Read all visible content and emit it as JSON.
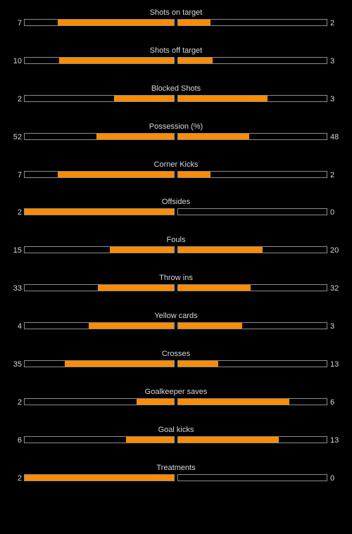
{
  "colors": {
    "background": "#000000",
    "bar_fill": "#ff8c00",
    "bar_border": "#8c8c8c",
    "text": "#d8d8d8"
  },
  "stats": [
    {
      "label": "Shots on target",
      "home": "7",
      "away": "2",
      "home_fill": 0.78,
      "away_fill": 0.22
    },
    {
      "label": "Shots off target",
      "home": "10",
      "away": "3",
      "home_fill": 0.77,
      "away_fill": 0.23
    },
    {
      "label": "Blocked Shots",
      "home": "2",
      "away": "3",
      "home_fill": 0.4,
      "away_fill": 0.6
    },
    {
      "label": "Possession (%)",
      "home": "52",
      "away": "48",
      "home_fill": 0.52,
      "away_fill": 0.48
    },
    {
      "label": "Corner Kicks",
      "home": "7",
      "away": "2",
      "home_fill": 0.78,
      "away_fill": 0.22
    },
    {
      "label": "Offsides",
      "home": "2",
      "away": "0",
      "home_fill": 1.0,
      "away_fill": 0.0
    },
    {
      "label": "Fouls",
      "home": "15",
      "away": "20",
      "home_fill": 0.43,
      "away_fill": 0.57
    },
    {
      "label": "Throw ins",
      "home": "33",
      "away": "32",
      "home_fill": 0.51,
      "away_fill": 0.49
    },
    {
      "label": "Yellow cards",
      "home": "4",
      "away": "3",
      "home_fill": 0.57,
      "away_fill": 0.43
    },
    {
      "label": "Crosses",
      "home": "35",
      "away": "13",
      "home_fill": 0.73,
      "away_fill": 0.27
    },
    {
      "label": "Goalkeeper saves",
      "home": "2",
      "away": "6",
      "home_fill": 0.25,
      "away_fill": 0.75
    },
    {
      "label": "Goal kicks",
      "home": "6",
      "away": "13",
      "home_fill": 0.32,
      "away_fill": 0.68
    },
    {
      "label": "Treatments",
      "home": "2",
      "away": "0",
      "home_fill": 1.0,
      "away_fill": 0.0
    }
  ]
}
